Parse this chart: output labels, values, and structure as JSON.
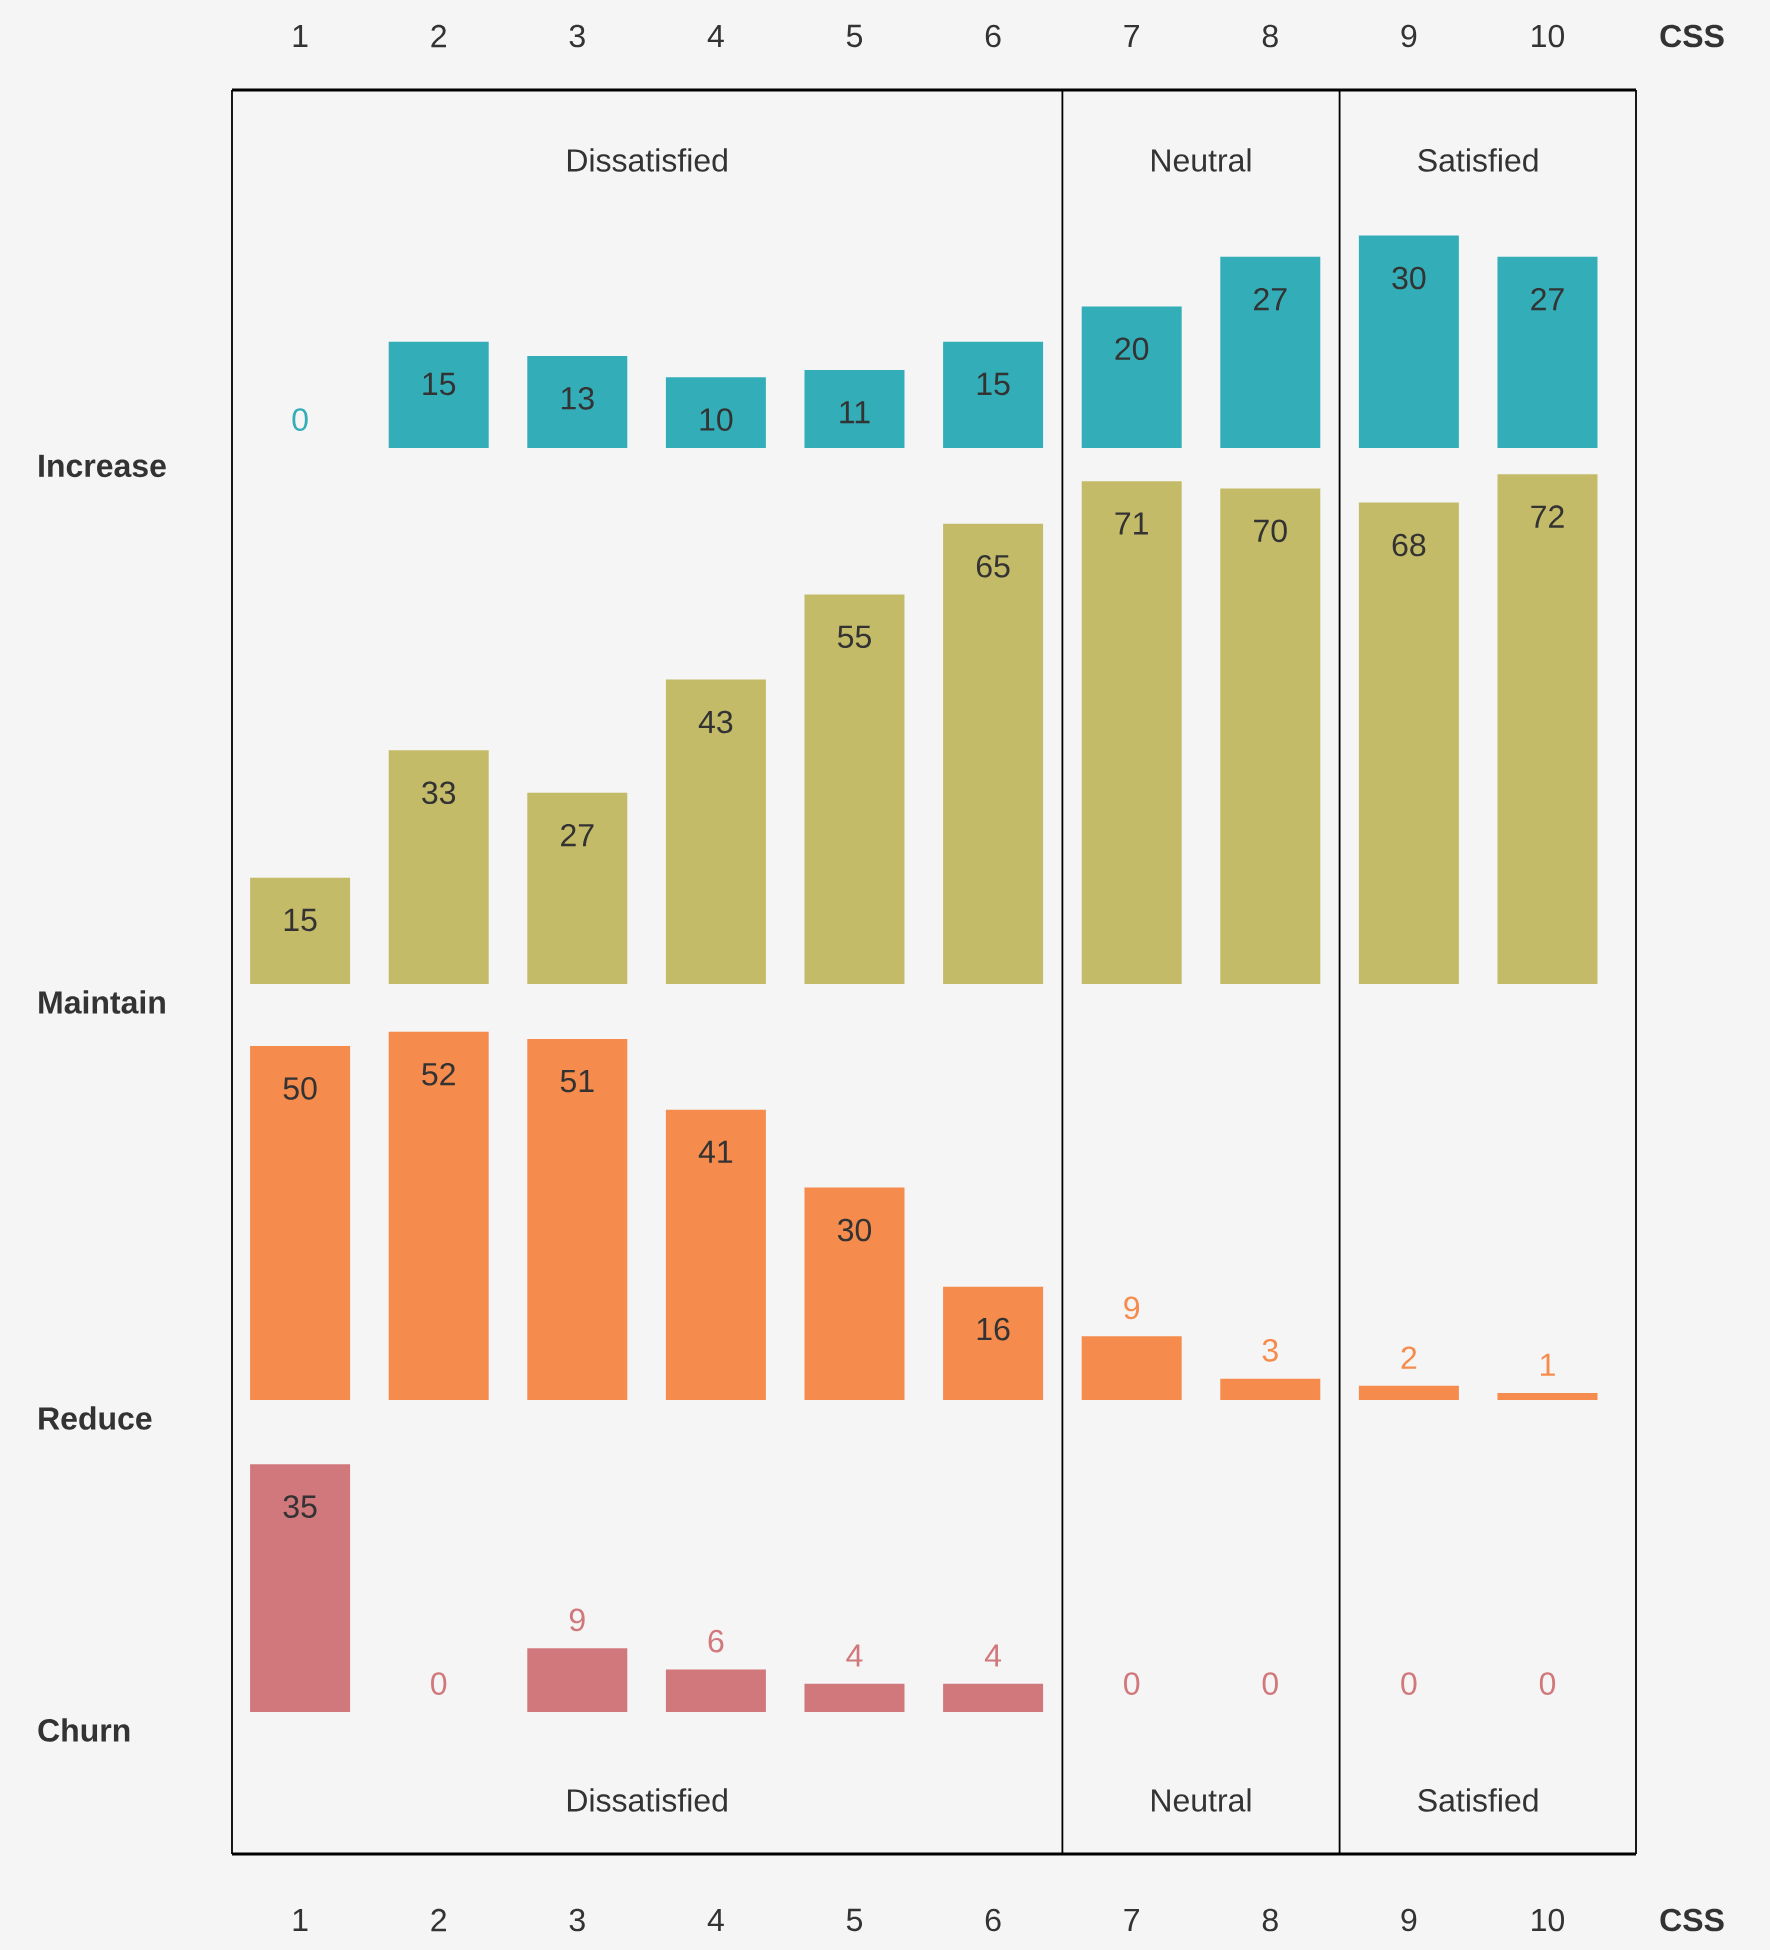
{
  "chart_data": [
    {
      "type": "bar",
      "title": "Increase",
      "xlabel": "CSS",
      "categories": [
        "1",
        "2",
        "3",
        "4",
        "5",
        "6",
        "7",
        "8",
        "9",
        "10"
      ],
      "values": [
        0,
        15,
        13,
        10,
        11,
        15,
        20,
        27,
        30,
        27
      ],
      "color": "#33aeb8",
      "data_labels": true,
      "annotations": [
        "Dissatisfied",
        "Neutral",
        "Satisfied"
      ]
    },
    {
      "type": "bar",
      "title": "Maintain",
      "categories": [
        "1",
        "2",
        "3",
        "4",
        "5",
        "6",
        "7",
        "8",
        "9",
        "10"
      ],
      "values": [
        15,
        33,
        27,
        43,
        55,
        65,
        71,
        70,
        68,
        72
      ],
      "color": "#c4bb68",
      "data_labels": true,
      "tick_labels": false
    },
    {
      "type": "bar",
      "title": "Reduce",
      "categories": [
        "1",
        "2",
        "3",
        "4",
        "5",
        "6",
        "7",
        "8",
        "9",
        "10"
      ],
      "values": [
        50,
        52,
        51,
        41,
        30,
        16,
        9,
        3,
        2,
        1
      ],
      "color": "#f58b4c",
      "data_labels": true,
      "tick_labels": false
    },
    {
      "type": "bar",
      "title": "Churn",
      "xlabel": "CSS",
      "categories": [
        "1",
        "2",
        "3",
        "4",
        "5",
        "6",
        "7",
        "8",
        "9",
        "10"
      ],
      "values": [
        35,
        0,
        9,
        6,
        4,
        4,
        0,
        0,
        0,
        0
      ],
      "color": "#d0787b",
      "data_labels": true,
      "annotations": [
        "Dissatisfied",
        "Neutral",
        "Satisfied"
      ]
    }
  ]
}
